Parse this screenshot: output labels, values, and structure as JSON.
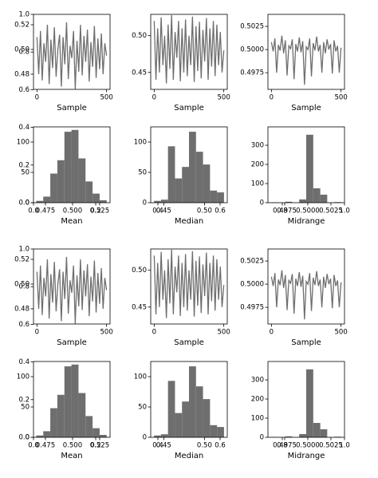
{
  "chart_data": [
    {
      "type": "empty",
      "xlim": [
        0,
        1
      ],
      "ylim": [
        0,
        1
      ],
      "xticks": [
        {
          "value": 0,
          "label": "0.0"
        },
        0.2,
        0.4,
        0.6,
        0.8,
        {
          "value": 1,
          "label": "1.0"
        }
      ],
      "yticks": [
        {
          "value": 0,
          "label": "0.0"
        },
        0.2,
        0.4,
        0.6,
        0.8,
        {
          "value": 1,
          "label": "1.0"
        }
      ]
    },
    {
      "type": "line",
      "xlabel": "Sample",
      "color": "#6e6e6e",
      "xlim": [
        -25,
        525
      ],
      "ylim": [
        0.4677,
        0.5284
      ],
      "xticks": [
        0,
        500
      ],
      "yticks": [
        0.48,
        {
          "value": 0.5,
          "label": "0.50"
        },
        0.52
      ],
      "x": [
        0,
        12.5,
        25,
        37.5,
        50,
        62.5,
        75,
        87.5,
        100,
        112.5,
        125,
        137.5,
        150,
        162.5,
        175,
        187.5,
        200,
        212.5,
        225,
        237.5,
        250,
        262.5,
        275,
        287.5,
        300,
        312.5,
        325,
        337.5,
        350,
        362.5,
        375,
        387.5,
        400,
        412.5,
        425,
        437.5,
        450,
        462.5,
        475,
        487.5,
        500
      ],
      "values": [
        0.51,
        0.48,
        0.515,
        0.475,
        0.505,
        0.49,
        0.52,
        0.472,
        0.508,
        0.485,
        0.518,
        0.478,
        0.5,
        0.512,
        0.47,
        0.51,
        0.488,
        0.522,
        0.476,
        0.503,
        0.493,
        0.515,
        0.468,
        0.507,
        0.482,
        0.52,
        0.479,
        0.511,
        0.49,
        0.516,
        0.474,
        0.506,
        0.486,
        0.519,
        0.477,
        0.509,
        0.484,
        0.513,
        0.48,
        0.505,
        0.495
      ]
    },
    {
      "type": "line",
      "xlabel": "Sample",
      "color": "#6e6e6e",
      "xlim": [
        -25,
        525
      ],
      "ylim": [
        0.427,
        0.529
      ],
      "xticks": [
        0,
        500
      ],
      "yticks": [
        0.45,
        {
          "value": 0.5,
          "label": "0.50"
        }
      ],
      "x": [
        0,
        12.5,
        25,
        37.5,
        50,
        62.5,
        75,
        87.5,
        100,
        112.5,
        125,
        137.5,
        150,
        162.5,
        175,
        187.5,
        200,
        212.5,
        225,
        237.5,
        250,
        262.5,
        275,
        287.5,
        300,
        312.5,
        325,
        337.5,
        350,
        362.5,
        375,
        387.5,
        400,
        412.5,
        425,
        437.5,
        450,
        462.5,
        475,
        487.5,
        500
      ],
      "values": [
        0.52,
        0.44,
        0.51,
        0.45,
        0.525,
        0.46,
        0.5,
        0.435,
        0.515,
        0.455,
        0.528,
        0.44,
        0.505,
        0.47,
        0.52,
        0.438,
        0.51,
        0.45,
        0.522,
        0.445,
        0.5,
        0.46,
        0.526,
        0.437,
        0.513,
        0.452,
        0.519,
        0.442,
        0.508,
        0.465,
        0.524,
        0.44,
        0.51,
        0.458,
        0.52,
        0.445,
        0.515,
        0.46,
        0.505,
        0.45,
        0.48
      ]
    },
    {
      "type": "line",
      "xlabel": "Sample",
      "color": "#6e6e6e",
      "xlim": [
        -25,
        525
      ],
      "ylim": [
        0.4957,
        0.5038
      ],
      "xticks": [
        0,
        500
      ],
      "yticks": [
        0.4975,
        {
          "value": 0.5,
          "label": "0.5000"
        },
        0.5025
      ],
      "x": [
        0,
        12.5,
        25,
        37.5,
        50,
        62.5,
        75,
        87.5,
        100,
        112.5,
        125,
        137.5,
        150,
        162.5,
        175,
        187.5,
        200,
        212.5,
        225,
        237.5,
        250,
        262.5,
        275,
        287.5,
        300,
        312.5,
        325,
        337.5,
        350,
        362.5,
        375,
        387.5,
        400,
        412.5,
        425,
        437.5,
        450,
        462.5,
        475,
        487.5,
        500
      ],
      "values": [
        0.5008,
        0.4998,
        0.5012,
        0.4975,
        0.5005,
        0.4999,
        0.5015,
        0.4996,
        0.501,
        0.4972,
        0.5004,
        0.5001,
        0.5011,
        0.4968,
        0.5006,
        0.4998,
        0.5013,
        0.4997,
        0.5009,
        0.4962,
        0.5003,
        0.5,
        0.5012,
        0.4971,
        0.5007,
        0.4999,
        0.5014,
        0.4998,
        0.5005,
        0.4975,
        0.5008,
        0.4996,
        0.5011,
        0.5,
        0.5006,
        0.4974,
        0.501,
        0.4998,
        0.5004,
        0.4975,
        0.5002
      ]
    },
    {
      "type": "histogram",
      "xlabel": "Mean",
      "color": "#6e6e6e",
      "xlim": [
        0.464,
        0.5346
      ],
      "ylim": [
        0,
        125
      ],
      "xticks": [
        0.475,
        {
          "value": 0.5,
          "label": "0.500"
        },
        0.525
      ],
      "yticks": [
        0,
        50,
        100
      ],
      "bins": [
        0.4665,
        0.473,
        0.4795,
        0.486,
        0.4925,
        0.499,
        0.5055,
        0.512,
        0.5185,
        0.525,
        0.5315
      ],
      "values": [
        3,
        10,
        48,
        70,
        117,
        120,
        73,
        35,
        15,
        4
      ]
    },
    {
      "type": "histogram",
      "xlabel": "Median",
      "color": "#6e6e6e",
      "xlim": [
        0.434,
        0.528
      ],
      "ylim": [
        0,
        125
      ],
      "xticks": [
        0.45,
        {
          "value": 0.5,
          "label": "0.50"
        }
      ],
      "yticks": [
        0,
        50,
        100
      ],
      "bins": [
        0.438,
        0.4466,
        0.4552,
        0.4638,
        0.4724,
        0.481,
        0.4896,
        0.4982,
        0.5068,
        0.5154,
        0.524
      ],
      "values": [
        3,
        5,
        93,
        40,
        59,
        117,
        84,
        63,
        20,
        17
      ]
    },
    {
      "type": "histogram",
      "xlabel": "Midrange",
      "color": "#6e6e6e",
      "xlim": [
        0.49569,
        0.50397
      ],
      "ylim": [
        0,
        396
      ],
      "xticks": [
        0.4975,
        {
          "value": 0.5,
          "label": "0.5000"
        },
        0.5025
      ],
      "yticks": [
        0,
        100,
        200,
        300
      ],
      "bins": [
        0.49604,
        0.4968,
        0.49756,
        0.49831,
        0.49907,
        0.49983,
        0.50059,
        0.50135,
        0.5021,
        0.50286,
        0.50362
      ],
      "values": [
        2,
        0,
        5,
        0,
        17,
        355,
        75,
        42,
        0,
        3
      ]
    },
    {
      "type": "empty",
      "xlim": [
        0,
        1
      ],
      "ylim": [
        0,
        1
      ],
      "xticks": [
        {
          "value": 0,
          "label": "0.0"
        },
        0.2,
        0.4,
        0.6,
        0.8,
        {
          "value": 1,
          "label": "1.0"
        }
      ],
      "yticks": [
        {
          "value": 0,
          "label": "0.0"
        },
        0.2,
        0.4,
        0.6,
        0.8,
        {
          "value": 1,
          "label": "1.0"
        }
      ]
    },
    {
      "type": "line",
      "xlabel": "Sample",
      "color": "#6e6e6e",
      "xlim": [
        -25,
        525
      ],
      "ylim": [
        0.4677,
        0.5284
      ],
      "xticks": [
        0,
        500
      ],
      "yticks": [
        0.48,
        {
          "value": 0.5,
          "label": "0.50"
        },
        0.52
      ],
      "x": [
        0,
        12.5,
        25,
        37.5,
        50,
        62.5,
        75,
        87.5,
        100,
        112.5,
        125,
        137.5,
        150,
        162.5,
        175,
        187.5,
        200,
        212.5,
        225,
        237.5,
        250,
        262.5,
        275,
        287.5,
        300,
        312.5,
        325,
        337.5,
        350,
        362.5,
        375,
        387.5,
        400,
        412.5,
        425,
        437.5,
        450,
        462.5,
        475,
        487.5,
        500
      ],
      "values": [
        0.51,
        0.48,
        0.515,
        0.475,
        0.505,
        0.49,
        0.52,
        0.472,
        0.508,
        0.485,
        0.518,
        0.478,
        0.5,
        0.512,
        0.47,
        0.51,
        0.488,
        0.522,
        0.476,
        0.503,
        0.493,
        0.515,
        0.468,
        0.507,
        0.482,
        0.52,
        0.479,
        0.511,
        0.49,
        0.516,
        0.474,
        0.506,
        0.486,
        0.519,
        0.477,
        0.509,
        0.484,
        0.513,
        0.48,
        0.505,
        0.495
      ]
    },
    {
      "type": "line",
      "xlabel": "Sample",
      "color": "#6e6e6e",
      "xlim": [
        -25,
        525
      ],
      "ylim": [
        0.427,
        0.529
      ],
      "xticks": [
        0,
        500
      ],
      "yticks": [
        0.45,
        {
          "value": 0.5,
          "label": "0.50"
        }
      ],
      "x": [
        0,
        12.5,
        25,
        37.5,
        50,
        62.5,
        75,
        87.5,
        100,
        112.5,
        125,
        137.5,
        150,
        162.5,
        175,
        187.5,
        200,
        212.5,
        225,
        237.5,
        250,
        262.5,
        275,
        287.5,
        300,
        312.5,
        325,
        337.5,
        350,
        362.5,
        375,
        387.5,
        400,
        412.5,
        425,
        437.5,
        450,
        462.5,
        475,
        487.5,
        500
      ],
      "values": [
        0.52,
        0.44,
        0.51,
        0.45,
        0.525,
        0.46,
        0.5,
        0.435,
        0.515,
        0.455,
        0.528,
        0.44,
        0.505,
        0.47,
        0.52,
        0.438,
        0.51,
        0.45,
        0.522,
        0.445,
        0.5,
        0.46,
        0.526,
        0.437,
        0.513,
        0.452,
        0.519,
        0.442,
        0.508,
        0.465,
        0.524,
        0.44,
        0.51,
        0.458,
        0.52,
        0.445,
        0.515,
        0.46,
        0.505,
        0.45,
        0.48
      ]
    },
    {
      "type": "line",
      "xlabel": "Sample",
      "color": "#6e6e6e",
      "xlim": [
        -25,
        525
      ],
      "ylim": [
        0.4957,
        0.5038
      ],
      "xticks": [
        0,
        500
      ],
      "yticks": [
        0.4975,
        {
          "value": 0.5,
          "label": "0.5000"
        },
        0.5025
      ],
      "x": [
        0,
        12.5,
        25,
        37.5,
        50,
        62.5,
        75,
        87.5,
        100,
        112.5,
        125,
        137.5,
        150,
        162.5,
        175,
        187.5,
        200,
        212.5,
        225,
        237.5,
        250,
        262.5,
        275,
        287.5,
        300,
        312.5,
        325,
        337.5,
        350,
        362.5,
        375,
        387.5,
        400,
        412.5,
        425,
        437.5,
        450,
        462.5,
        475,
        487.5,
        500
      ],
      "values": [
        0.5008,
        0.4998,
        0.5012,
        0.4975,
        0.5005,
        0.4999,
        0.5015,
        0.4996,
        0.501,
        0.4972,
        0.5004,
        0.5001,
        0.5011,
        0.4968,
        0.5006,
        0.4998,
        0.5013,
        0.4997,
        0.5009,
        0.4962,
        0.5003,
        0.5,
        0.5012,
        0.4971,
        0.5007,
        0.4999,
        0.5014,
        0.4998,
        0.5005,
        0.4975,
        0.5008,
        0.4996,
        0.5011,
        0.5,
        0.5006,
        0.4974,
        0.501,
        0.4998,
        0.5004,
        0.4975,
        0.5002
      ]
    },
    {
      "type": "histogram",
      "xlabel": "Mean",
      "color": "#6e6e6e",
      "xlim": [
        0.464,
        0.5346
      ],
      "ylim": [
        0,
        125
      ],
      "xticks": [
        0.475,
        {
          "value": 0.5,
          "label": "0.500"
        },
        0.525
      ],
      "yticks": [
        0,
        50,
        100
      ],
      "bins": [
        0.4665,
        0.473,
        0.4795,
        0.486,
        0.4925,
        0.499,
        0.5055,
        0.512,
        0.5185,
        0.525,
        0.5315
      ],
      "values": [
        3,
        10,
        48,
        70,
        117,
        120,
        73,
        35,
        15,
        4
      ]
    },
    {
      "type": "histogram",
      "xlabel": "Median",
      "color": "#6e6e6e",
      "xlim": [
        0.434,
        0.528
      ],
      "ylim": [
        0,
        125
      ],
      "xticks": [
        0.45,
        {
          "value": 0.5,
          "label": "0.50"
        }
      ],
      "yticks": [
        0,
        50,
        100
      ],
      "bins": [
        0.438,
        0.4466,
        0.4552,
        0.4638,
        0.4724,
        0.481,
        0.4896,
        0.4982,
        0.5068,
        0.5154,
        0.524
      ],
      "values": [
        3,
        5,
        93,
        40,
        59,
        117,
        84,
        63,
        20,
        17
      ]
    },
    {
      "type": "histogram",
      "xlabel": "Midrange",
      "color": "#6e6e6e",
      "xlim": [
        0.49569,
        0.50397
      ],
      "ylim": [
        0,
        396
      ],
      "xticks": [
        0.4975,
        {
          "value": 0.5,
          "label": "0.5000"
        },
        0.5025
      ],
      "yticks": [
        0,
        100,
        200,
        300
      ],
      "bins": [
        0.49604,
        0.4968,
        0.49756,
        0.49831,
        0.49907,
        0.49983,
        0.50059,
        0.50135,
        0.5021,
        0.50286,
        0.50362
      ],
      "values": [
        2,
        0,
        5,
        0,
        17,
        355,
        75,
        42,
        0,
        3
      ]
    }
  ]
}
